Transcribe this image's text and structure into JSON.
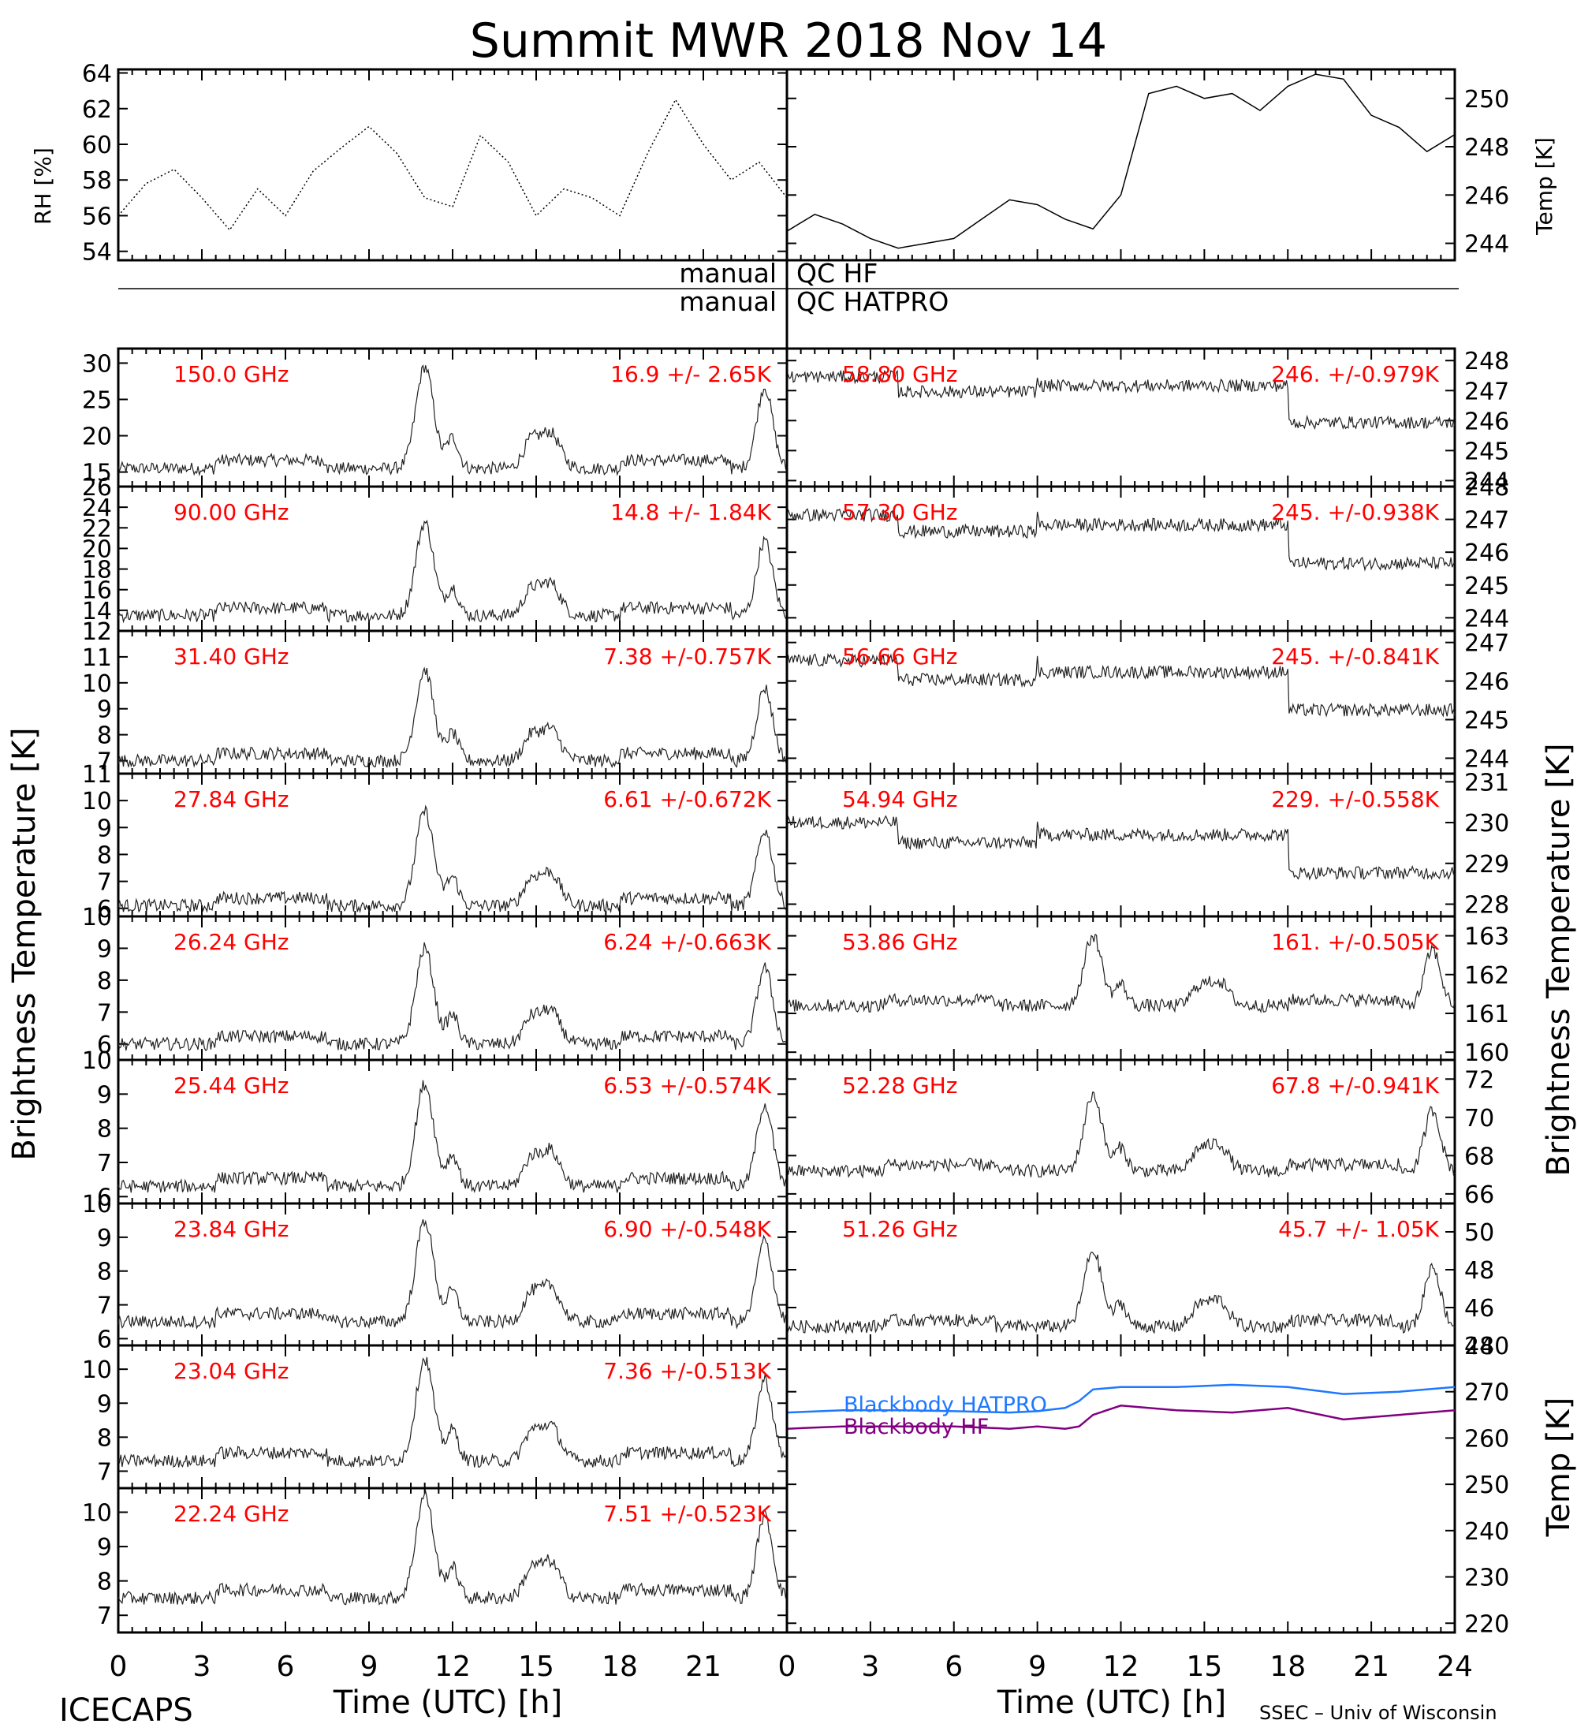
{
  "figure": {
    "title": "Summit MWR 2018 Nov 14",
    "footer_left": "ICECAPS",
    "footer_right": "SSEC – Univ of Wisconsin",
    "left_axis_label": "Brightness Temperature [K]",
    "right_axis_label": "Brightness Temperature [K]",
    "left_xlabel": "Time (UTC) [h]",
    "right_xlabel": "Time (UTC) [h]",
    "qc_hf": {
      "left": "manual",
      "right": "QC HF"
    },
    "qc_hatpro": {
      "left": "manual",
      "right": "QC HATPRO"
    }
  },
  "colors": {
    "annotation": "#ff0000",
    "trace": "#000000",
    "hatpro": "#1e78ff",
    "hf": "#800080"
  },
  "chart_data": [
    {
      "type": "line",
      "panel": "rh",
      "ylabel": "RH [%]",
      "xlim": [
        0,
        12
      ],
      "ylim": [
        53.5,
        64.2
      ],
      "yticks": [
        54,
        56,
        58,
        60,
        62,
        64
      ],
      "x": [
        0,
        0.5,
        1,
        1.5,
        2,
        2.5,
        3,
        3.5,
        4,
        4.5,
        5,
        5.5,
        6,
        6.5,
        7,
        7.5,
        8,
        8.5,
        9,
        9.5,
        10,
        10.5,
        11,
        11.5,
        12
      ],
      "values": [
        56,
        57.8,
        58.6,
        57,
        55.2,
        57.5,
        56,
        58.5,
        59.8,
        61,
        59.5,
        57,
        56.5,
        60.5,
        59,
        56,
        57.5,
        57,
        56,
        59.5,
        62.5,
        60,
        58,
        59,
        57
      ]
    },
    {
      "type": "line",
      "panel": "temp",
      "ylabel": "Temp [K]",
      "xlim": [
        12,
        24
      ],
      "ylim": [
        243.3,
        251.2
      ],
      "yticks": [
        244,
        246,
        248,
        250
      ],
      "x": [
        12,
        12.5,
        13,
        13.5,
        14,
        14.5,
        15,
        15.5,
        16,
        16.5,
        17,
        17.5,
        18,
        18.5,
        19,
        19.5,
        20,
        20.5,
        21,
        21.5,
        22,
        22.5,
        23,
        23.5,
        24
      ],
      "values": [
        244.5,
        245.2,
        244.8,
        244.2,
        243.8,
        244,
        244.2,
        245,
        245.8,
        245.6,
        245,
        244.6,
        246,
        250.2,
        250.5,
        250,
        250.2,
        249.5,
        250.5,
        251,
        250.8,
        249.3,
        248.8,
        247.8,
        248.5
      ]
    },
    {
      "type": "line",
      "panel": "150.0 GHz",
      "side": "left",
      "label": "150.0 GHz",
      "stats": "16.9 +/-  2.65K",
      "ylim": [
        13,
        32
      ],
      "yticks": [
        15,
        20,
        25,
        30
      ],
      "base": 15.5,
      "peak": 14
    },
    {
      "type": "line",
      "panel": "90.00 GHz",
      "side": "left",
      "label": "90.00 GHz",
      "stats": "14.8 +/-  1.84K",
      "ylim": [
        12,
        26
      ],
      "yticks": [
        12,
        14,
        16,
        18,
        20,
        22,
        24,
        26
      ],
      "base": 13.5,
      "peak": 9
    },
    {
      "type": "line",
      "panel": "31.40 GHz",
      "side": "left",
      "label": "31.40 GHz",
      "stats": "7.38 +/-0.757K",
      "ylim": [
        6.5,
        12
      ],
      "yticks": [
        7,
        8,
        9,
        10,
        11,
        12
      ],
      "base": 7,
      "peak": 3.5
    },
    {
      "type": "line",
      "panel": "27.84 GHz",
      "side": "left",
      "label": "27.84 GHz",
      "stats": "6.61 +/-0.672K",
      "ylim": [
        5.7,
        11
      ],
      "yticks": [
        6,
        7,
        8,
        9,
        10,
        11
      ],
      "base": 6.1,
      "peak": 3.5
    },
    {
      "type": "line",
      "panel": "26.24 GHz",
      "side": "left",
      "label": "26.24 GHz",
      "stats": "6.24 +/-0.663K",
      "ylim": [
        5.5,
        10
      ],
      "yticks": [
        6,
        7,
        8,
        9,
        10
      ],
      "base": 6,
      "peak": 3
    },
    {
      "type": "line",
      "panel": "25.44 GHz",
      "side": "left",
      "label": "25.44 GHz",
      "stats": "6.53 +/-0.574K",
      "ylim": [
        5.8,
        10
      ],
      "yticks": [
        6,
        7,
        8,
        9,
        10
      ],
      "base": 6.3,
      "peak": 3
    },
    {
      "type": "line",
      "panel": "23.84 GHz",
      "side": "left",
      "label": "23.84 GHz",
      "stats": "6.90 +/-0.548K",
      "ylim": [
        5.8,
        10
      ],
      "yticks": [
        6,
        7,
        8,
        9,
        10
      ],
      "base": 6.5,
      "peak": 3
    },
    {
      "type": "line",
      "panel": "23.04 GHz",
      "side": "left",
      "label": "23.04 GHz",
      "stats": "7.36 +/-0.513K",
      "ylim": [
        6.5,
        10.7
      ],
      "yticks": [
        7,
        8,
        9,
        10
      ],
      "base": 7.3,
      "peak": 3
    },
    {
      "type": "line",
      "panel": "22.24 GHz",
      "side": "left",
      "label": "22.24 GHz",
      "stats": "7.51 +/-0.523K",
      "ylim": [
        6.5,
        10.7
      ],
      "yticks": [
        7,
        8,
        9,
        10
      ],
      "base": 7.5,
      "peak": 3
    },
    {
      "type": "line",
      "panel": "58.80 GHz",
      "side": "right",
      "label": "58.80 GHz",
      "stats": "246. +/-0.979K",
      "ylim": [
        243.8,
        248.4
      ],
      "yticks": [
        244,
        245,
        246,
        247,
        248
      ],
      "base": 246.8,
      "drop": true
    },
    {
      "type": "line",
      "panel": "57.30 GHz",
      "side": "right",
      "label": "57.30 GHz",
      "stats": "245. +/-0.938K",
      "ylim": [
        243.6,
        248
      ],
      "yticks": [
        244,
        245,
        246,
        247,
        248
      ],
      "base": 246.5,
      "drop": true
    },
    {
      "type": "line",
      "panel": "56.66 GHz",
      "side": "right",
      "label": "56.66 GHz",
      "stats": "245. +/-0.841K",
      "ylim": [
        243.6,
        247.3
      ],
      "yticks": [
        244,
        245,
        246,
        247
      ],
      "base": 246,
      "drop": true
    },
    {
      "type": "line",
      "panel": "54.94 GHz",
      "side": "right",
      "label": "54.94 GHz",
      "stats": "229. +/-0.558K",
      "ylim": [
        227.7,
        231.2
      ],
      "yticks": [
        228,
        229,
        230,
        231
      ],
      "base": 229.5,
      "drop": true
    },
    {
      "type": "line",
      "panel": "53.86 GHz",
      "side": "right",
      "label": "53.86 GHz",
      "stats": "161. +/-0.505K",
      "ylim": [
        159.8,
        163.5
      ],
      "yticks": [
        160,
        161,
        162,
        163
      ],
      "base": 161.2,
      "peak": 1.8
    },
    {
      "type": "line",
      "panel": "52.28 GHz",
      "side": "right",
      "label": "52.28 GHz",
      "stats": "67.8 +/-0.941K",
      "ylim": [
        65.5,
        73
      ],
      "yticks": [
        66,
        68,
        70,
        72
      ],
      "base": 67.2,
      "peak": 4
    },
    {
      "type": "line",
      "panel": "51.26 GHz",
      "side": "right",
      "label": "51.26 GHz",
      "stats": "45.7 +/-  1.05K",
      "ylim": [
        44,
        51.5
      ],
      "yticks": [
        44,
        46,
        48,
        50
      ],
      "base": 45,
      "peak": 4
    },
    {
      "type": "line",
      "panel": "blackbody",
      "ylabel": "Temp [K]",
      "xlim": [
        0,
        24
      ],
      "ylim": [
        218,
        280
      ],
      "yticks": [
        220,
        230,
        240,
        250,
        260,
        270,
        280
      ],
      "x": [
        0,
        2,
        4,
        6,
        8,
        9,
        10,
        10.5,
        11,
        12,
        14,
        16,
        18,
        20,
        22,
        24
      ],
      "series": [
        {
          "name": "Blackbody HATPRO",
          "values": [
            265.5,
            266,
            266,
            265.8,
            265.5,
            265.8,
            266.5,
            268,
            270.5,
            271,
            271,
            271.5,
            271,
            269.5,
            270,
            271
          ]
        },
        {
          "name": "Blackbody HF",
          "values": [
            262,
            262.5,
            262.5,
            262.5,
            262,
            262.5,
            262,
            262.5,
            265,
            267,
            266,
            265.5,
            266.5,
            264,
            265,
            266
          ]
        }
      ]
    }
  ],
  "x_ticks_left": [
    "0",
    "3",
    "6",
    "9",
    "12",
    "15",
    "18",
    "21"
  ],
  "x_ticks_right": [
    "0",
    "3",
    "6",
    "9",
    "12",
    "15",
    "18",
    "21",
    "24"
  ]
}
